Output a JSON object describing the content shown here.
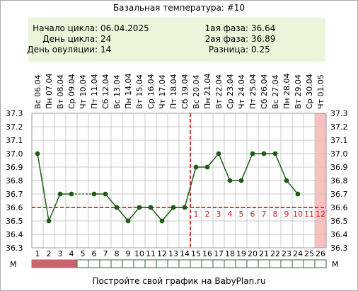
{
  "title": "Базальная температура: #10",
  "info": {
    "left": [
      {
        "label": "Начало цикла:",
        "value": "06.04.2025"
      },
      {
        "label": "День цикла:",
        "value": "24"
      },
      {
        "label": "День овуляции:",
        "value": "14"
      }
    ],
    "right": [
      {
        "label": "1ая фаза:",
        "value": "36.64"
      },
      {
        "label": "2ая фаза:",
        "value": "36.89"
      },
      {
        "label": "Разница:",
        "value": "0.25"
      }
    ]
  },
  "footer": "Постройте свой график на BabyPlan.ru",
  "colors": {
    "info_bg": "#eaf5d9",
    "line": "#1e5c16",
    "coverline": "#cc2222",
    "menses": "#c8646e",
    "highlight_col": "#f9c0c0",
    "grid": "#c8c8c8"
  },
  "chart_data": {
    "type": "line",
    "x": [
      "1",
      "2",
      "3",
      "4",
      "5",
      "6",
      "7",
      "8",
      "9",
      "10",
      "11",
      "12",
      "13",
      "14",
      "15",
      "16",
      "17",
      "18",
      "19",
      "20",
      "21",
      "22",
      "23",
      "24",
      "25",
      "26"
    ],
    "dates": [
      "Вс 06.04",
      "Пн 07.04",
      "Вт 08.04",
      "Ср 09.04",
      "Чт 10.04",
      "Пт 11.04",
      "Сб 12.04",
      "Вс 13.04",
      "Пн 14.04",
      "Вт 15.04",
      "Ср 16.04",
      "Чт 17.04",
      "Пт 18.04",
      "Сб 19.04",
      "Вс 20.04",
      "Пн 21.04",
      "Вт 22.04",
      "Ср 23.04",
      "Чт 24.04",
      "Пт 25.04",
      "Сб 26.04",
      "Вс 27.04",
      "Пн 28.04",
      "Вт 29.04",
      "Ср 30.04",
      "Чт 01.05"
    ],
    "series": [
      {
        "values": [
          37.0,
          36.5,
          36.7,
          36.7,
          null,
          36.7,
          36.7,
          36.6,
          36.5,
          36.6,
          36.6,
          36.5,
          36.6,
          36.6,
          36.9,
          36.9,
          37.0,
          36.8,
          36.8,
          37.0,
          37.0,
          37.0,
          36.8,
          36.7,
          null,
          null
        ]
      }
    ],
    "gap_segments": [
      [
        4,
        6
      ]
    ],
    "ylim": [
      36.3,
      37.3
    ],
    "yticks": [
      "36.3",
      "36.4",
      "36.5",
      "36.6",
      "36.7",
      "36.8",
      "36.9",
      "37.0",
      "37.1",
      "37.2",
      "37.3"
    ],
    "coverline": 36.6,
    "ovulation_day": 14,
    "luteal_day_labels": [
      "1",
      "2",
      "3",
      "4",
      "5",
      "6",
      "7",
      "8",
      "9",
      "10",
      "11",
      "12"
    ],
    "highlighted_day": 26,
    "menses_days": [
      1,
      2,
      3,
      4
    ],
    "row_label_left": "М",
    "row_label_right": "М",
    "grid": true
  }
}
